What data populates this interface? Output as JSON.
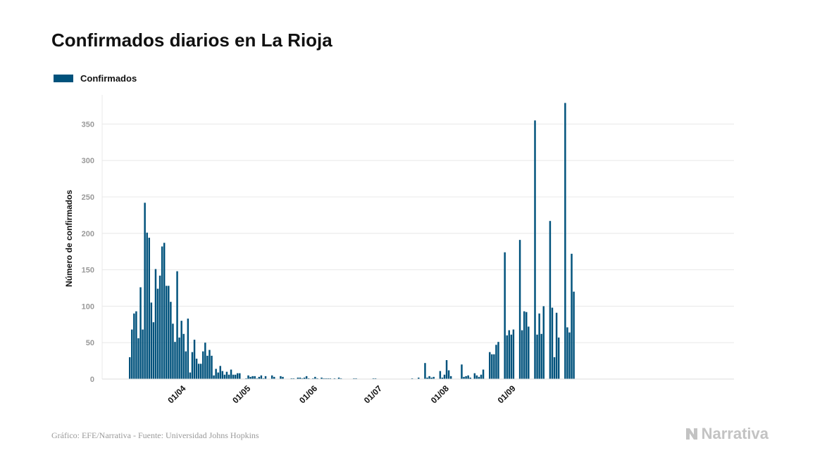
{
  "title": "Confirmados diarios en La Rioja",
  "legend": {
    "label": "Confirmados"
  },
  "footer": {
    "source": "Gráfico: EFE/Narrativa - Fuente: Universidad Johns Hopkins",
    "logo_text": "Narrativa"
  },
  "colors": {
    "bar": "#00527c",
    "grid": "#e8e8e8",
    "tick_text": "#999999"
  },
  "chart_data": {
    "type": "bar",
    "title": "Confirmados diarios en La Rioja",
    "ylabel": "Número de confirmados",
    "xlabel": "",
    "ylim": [
      0,
      390
    ],
    "yticks": [
      0,
      50,
      100,
      150,
      200,
      250,
      300,
      350
    ],
    "x_start_date": "2020-03-08",
    "xtick_labels": [
      {
        "label": "01/04",
        "date": "2020-04-01"
      },
      {
        "label": "01/05",
        "date": "2020-05-01"
      },
      {
        "label": "01/06",
        "date": "2020-06-01"
      },
      {
        "label": "01/07",
        "date": "2020-07-01"
      },
      {
        "label": "01/08",
        "date": "2020-08-01"
      },
      {
        "label": "01/09",
        "date": "2020-09-01"
      }
    ],
    "grid": true,
    "legend_position": "top-left",
    "series": [
      {
        "name": "Confirmados",
        "values": [
          30,
          68,
          90,
          93,
          56,
          126,
          68,
          242,
          201,
          194,
          105,
          78,
          151,
          124,
          142,
          182,
          187,
          128,
          128,
          106,
          76,
          51,
          148,
          57,
          80,
          62,
          38,
          83,
          9,
          37,
          54,
          28,
          21,
          21,
          38,
          50,
          32,
          40,
          32,
          5,
          14,
          9,
          18,
          11,
          6,
          10,
          6,
          13,
          6,
          6,
          8,
          8,
          0,
          0,
          1,
          5,
          3,
          4,
          4,
          1,
          3,
          5,
          1,
          4,
          0,
          0,
          5,
          3,
          0,
          0,
          4,
          3,
          0,
          0,
          0,
          1,
          1,
          0,
          2,
          2,
          1,
          2,
          4,
          1,
          0,
          1,
          3,
          1,
          0,
          2,
          1,
          1,
          1,
          1,
          0,
          1,
          0,
          2,
          1,
          0,
          0,
          0,
          0,
          0,
          1,
          1,
          0,
          0,
          0,
          0,
          0,
          0,
          0,
          1,
          1,
          0,
          0,
          0,
          0,
          0,
          0,
          0,
          0,
          0,
          0,
          0,
          0,
          0,
          0,
          0,
          0,
          1,
          0,
          0,
          2,
          0,
          0,
          22,
          2,
          4,
          2,
          3,
          0,
          0,
          11,
          2,
          6,
          26,
          12,
          4,
          0,
          0,
          0,
          0,
          20,
          3,
          4,
          5,
          2,
          0,
          8,
          5,
          3,
          6,
          13,
          0,
          0,
          37,
          34,
          34,
          47,
          51,
          0,
          0,
          174,
          60,
          67,
          61,
          68,
          0,
          0,
          191,
          67,
          93,
          92,
          72,
          0,
          0,
          355,
          61,
          90,
          62,
          100,
          0,
          0,
          217,
          98,
          30,
          91,
          57,
          0,
          0,
          379,
          71,
          64,
          172,
          120
        ]
      }
    ]
  }
}
